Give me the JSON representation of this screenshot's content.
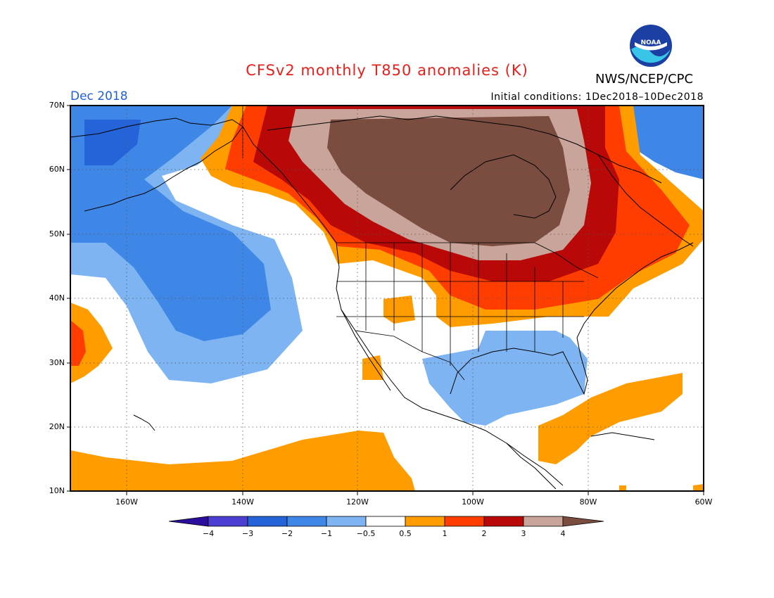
{
  "header": {
    "title": "CFSv2 monthly T850 anomalies (K)",
    "month": "Dec 2018",
    "initial_conditions": "Initial conditions: 1Dec2018–10Dec2018",
    "org": "NWS/NCEP/CPC",
    "logo_text": "NOAA"
  },
  "axes": {
    "lat_labels": [
      "70N",
      "60N",
      "50N",
      "40N",
      "30N",
      "20N",
      "10N"
    ],
    "lon_labels": [
      "160W",
      "140W",
      "120W",
      "100W",
      "80W",
      "60W"
    ]
  },
  "colorbar": {
    "labels": [
      "−4",
      "−3",
      "−2",
      "−1",
      "−0.5",
      "0.5",
      "1",
      "2",
      "3",
      "4"
    ],
    "colors": [
      "#2b0f9c",
      "#4a3fd0",
      "#2563d8",
      "#3f87e6",
      "#7db4f1",
      "#ffffff",
      "#ff9d00",
      "#ff3d00",
      "#b80808",
      "#c9a49a",
      "#7a4d40"
    ]
  },
  "colors": {
    "title": "#e8201c",
    "month": "#1f5fd8",
    "map_border": "#000000",
    "grid": "#555555"
  }
}
